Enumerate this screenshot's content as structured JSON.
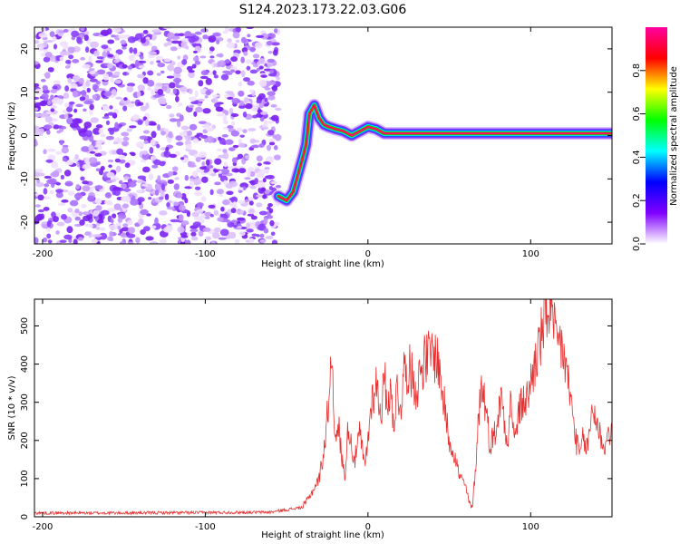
{
  "title": "S124.2023.173.22.03.G06",
  "chart_data": [
    {
      "type": "heatmap",
      "xlabel": "Height of straight line (km)",
      "ylabel": "Frequency (Hz)",
      "xlim": [
        -205,
        150
      ],
      "ylim": [
        -25,
        25
      ],
      "xticks": [
        -200,
        -100,
        0,
        100
      ],
      "yticks": [
        -20,
        -10,
        0,
        10,
        20
      ],
      "colorbar": {
        "label": "Normalized spectral amplitude",
        "range": [
          0,
          1
        ],
        "ticks": [
          0.0,
          0.2,
          0.4,
          0.6,
          0.8
        ],
        "colormap": [
          "#ffffff",
          "#8000ff",
          "#0000ff",
          "#00ffff",
          "#00ff00",
          "#ffff00",
          "#ff0000",
          "#ff00a0"
        ]
      },
      "track": [
        [
          -55,
          -14
        ],
        [
          -50,
          -15
        ],
        [
          -46,
          -13
        ],
        [
          -43,
          -9
        ],
        [
          -40,
          -5
        ],
        [
          -38,
          -2
        ],
        [
          -36,
          5
        ],
        [
          -33,
          7
        ],
        [
          -30,
          4
        ],
        [
          -27,
          2.5
        ],
        [
          -24,
          2
        ],
        [
          -20,
          1.5
        ],
        [
          -15,
          1
        ],
        [
          -10,
          0
        ],
        [
          -5,
          1
        ],
        [
          0,
          2
        ],
        [
          5,
          1.5
        ],
        [
          10,
          0.5
        ],
        [
          150,
          0.5
        ]
      ]
    },
    {
      "type": "line",
      "xlabel": "Height of straight line (km)",
      "ylabel": "SNR (10 * v/v)",
      "xlim": [
        -205,
        150
      ],
      "ylim": [
        0,
        570
      ],
      "xticks": [
        -200,
        -100,
        0,
        100
      ],
      "yticks": [
        0,
        100,
        200,
        300,
        400,
        500
      ],
      "color": "#e83030",
      "x": [
        -205,
        -150,
        -100,
        -60,
        -40,
        -35,
        -30,
        -28,
        -26,
        -24,
        -22,
        -20,
        -18,
        -16,
        -14,
        -12,
        -10,
        -8,
        -5,
        -2,
        0,
        2,
        5,
        8,
        10,
        12,
        14,
        16,
        18,
        20,
        22,
        25,
        28,
        30,
        33,
        36,
        40,
        43,
        46,
        48,
        50,
        53,
        56,
        60,
        62,
        64,
        66,
        68,
        70,
        72,
        75,
        78,
        80,
        82,
        84,
        86,
        88,
        90,
        92,
        95,
        98,
        100,
        103,
        106,
        108,
        110,
        112,
        114,
        116,
        118,
        120,
        122,
        124,
        126,
        128,
        130,
        132,
        135,
        138,
        140,
        143,
        146,
        148,
        150
      ],
      "y": [
        10,
        10,
        11,
        12,
        25,
        60,
        100,
        150,
        210,
        320,
        440,
        180,
        240,
        150,
        110,
        250,
        180,
        150,
        220,
        130,
        200,
        300,
        350,
        270,
        360,
        310,
        320,
        250,
        340,
        280,
        380,
        390,
        360,
        330,
        400,
        415,
        430,
        410,
        320,
        260,
        200,
        170,
        110,
        80,
        40,
        20,
        120,
        270,
        350,
        300,
        190,
        220,
        260,
        320,
        250,
        200,
        320,
        190,
        260,
        300,
        310,
        350,
        410,
        460,
        500,
        540,
        565,
        490,
        440,
        460,
        430,
        380,
        330,
        260,
        200,
        160,
        200,
        180,
        290,
        260,
        210,
        180,
        230,
        210
      ]
    }
  ]
}
